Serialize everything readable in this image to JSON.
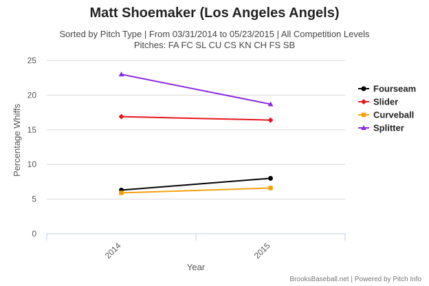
{
  "chart_data": {
    "type": "line",
    "title": "Matt Shoemaker (Los Angeles Angels)",
    "subtitle_line1": "Sorted by Pitch Type | From 03/31/2014 to 05/23/2015 | All Competition Levels",
    "subtitle_line2": "Pitches: FA FC SL CU CS KN CH FS SB",
    "xlabel": "Year",
    "ylabel": "Percentage Whiffs",
    "categories": [
      "2014",
      "2015"
    ],
    "ylim": [
      0,
      25
    ],
    "yticks": [
      "0",
      "5",
      "10",
      "15",
      "20",
      "25"
    ],
    "grid": true,
    "legend_position": "right",
    "series": [
      {
        "name": "Fourseam",
        "color": "#000000",
        "marker": "circle",
        "values": [
          6.3,
          8.0
        ]
      },
      {
        "name": "Slider",
        "color": "#e8141c",
        "marker": "diamond",
        "values": [
          16.9,
          16.4
        ]
      },
      {
        "name": "Curveball",
        "color": "#f5a00b",
        "marker": "square",
        "values": [
          5.9,
          6.6
        ]
      },
      {
        "name": "Splitter",
        "color": "#8a2be2",
        "marker": "triangle",
        "values": [
          23.0,
          18.7
        ]
      }
    ]
  },
  "credits": "BrooksBaseball.net | Powered by Pitch Info"
}
